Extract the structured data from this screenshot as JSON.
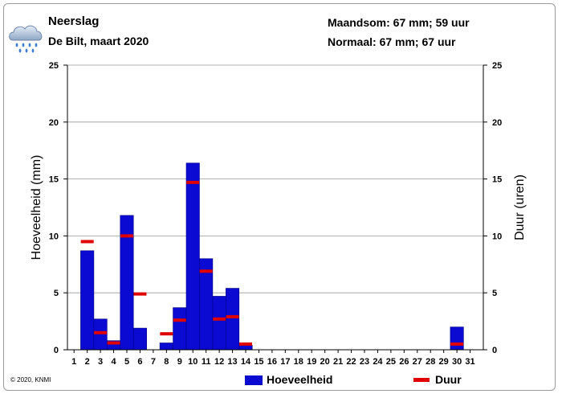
{
  "header": {
    "title": "Neerslag",
    "subtitle": "De Bilt, maart 2020",
    "stat_monthly": "Maandsom: 67 mm; 59 uur",
    "stat_normal": "Normaal: 67 mm; 67 uur"
  },
  "footer": {
    "copyright": "© 2020, KNMI"
  },
  "icon": {
    "name": "rain-cloud-icon"
  },
  "colors": {
    "bars": "#0a0ad2",
    "duration": "#e00000",
    "grid": "#999999"
  },
  "chart_data": {
    "type": "bar",
    "xlabel": "",
    "ylabel": "Hoeveelheid (mm)",
    "y2label": "Duur (uren)",
    "ylim": [
      0,
      25
    ],
    "y2lim": [
      0,
      25
    ],
    "yticks": [
      0,
      5,
      10,
      15,
      20,
      25
    ],
    "grid": true,
    "categories": [
      "1",
      "2",
      "3",
      "4",
      "5",
      "6",
      "7",
      "8",
      "9",
      "10",
      "11",
      "12",
      "13",
      "14",
      "15",
      "16",
      "17",
      "18",
      "19",
      "20",
      "21",
      "22",
      "23",
      "24",
      "25",
      "26",
      "27",
      "28",
      "29",
      "30",
      "31"
    ],
    "series": [
      {
        "name": "Hoeveelheid",
        "kind": "bar",
        "values": [
          0,
          8.7,
          2.7,
          0.8,
          11.8,
          1.9,
          0,
          0.6,
          3.7,
          16.4,
          8.0,
          4.7,
          5.4,
          0.4,
          0,
          0,
          0,
          0,
          0,
          0,
          0,
          0,
          0,
          0,
          0,
          0,
          0,
          0,
          0,
          2.0,
          0
        ]
      },
      {
        "name": "Duur",
        "kind": "marker",
        "values": [
          null,
          9.5,
          1.5,
          0.6,
          10.0,
          4.9,
          null,
          1.4,
          2.6,
          14.7,
          6.9,
          2.7,
          2.9,
          0.5,
          null,
          null,
          null,
          null,
          null,
          null,
          null,
          null,
          null,
          null,
          null,
          null,
          null,
          null,
          null,
          0.5,
          null
        ]
      }
    ],
    "legend_position": "bottom"
  }
}
